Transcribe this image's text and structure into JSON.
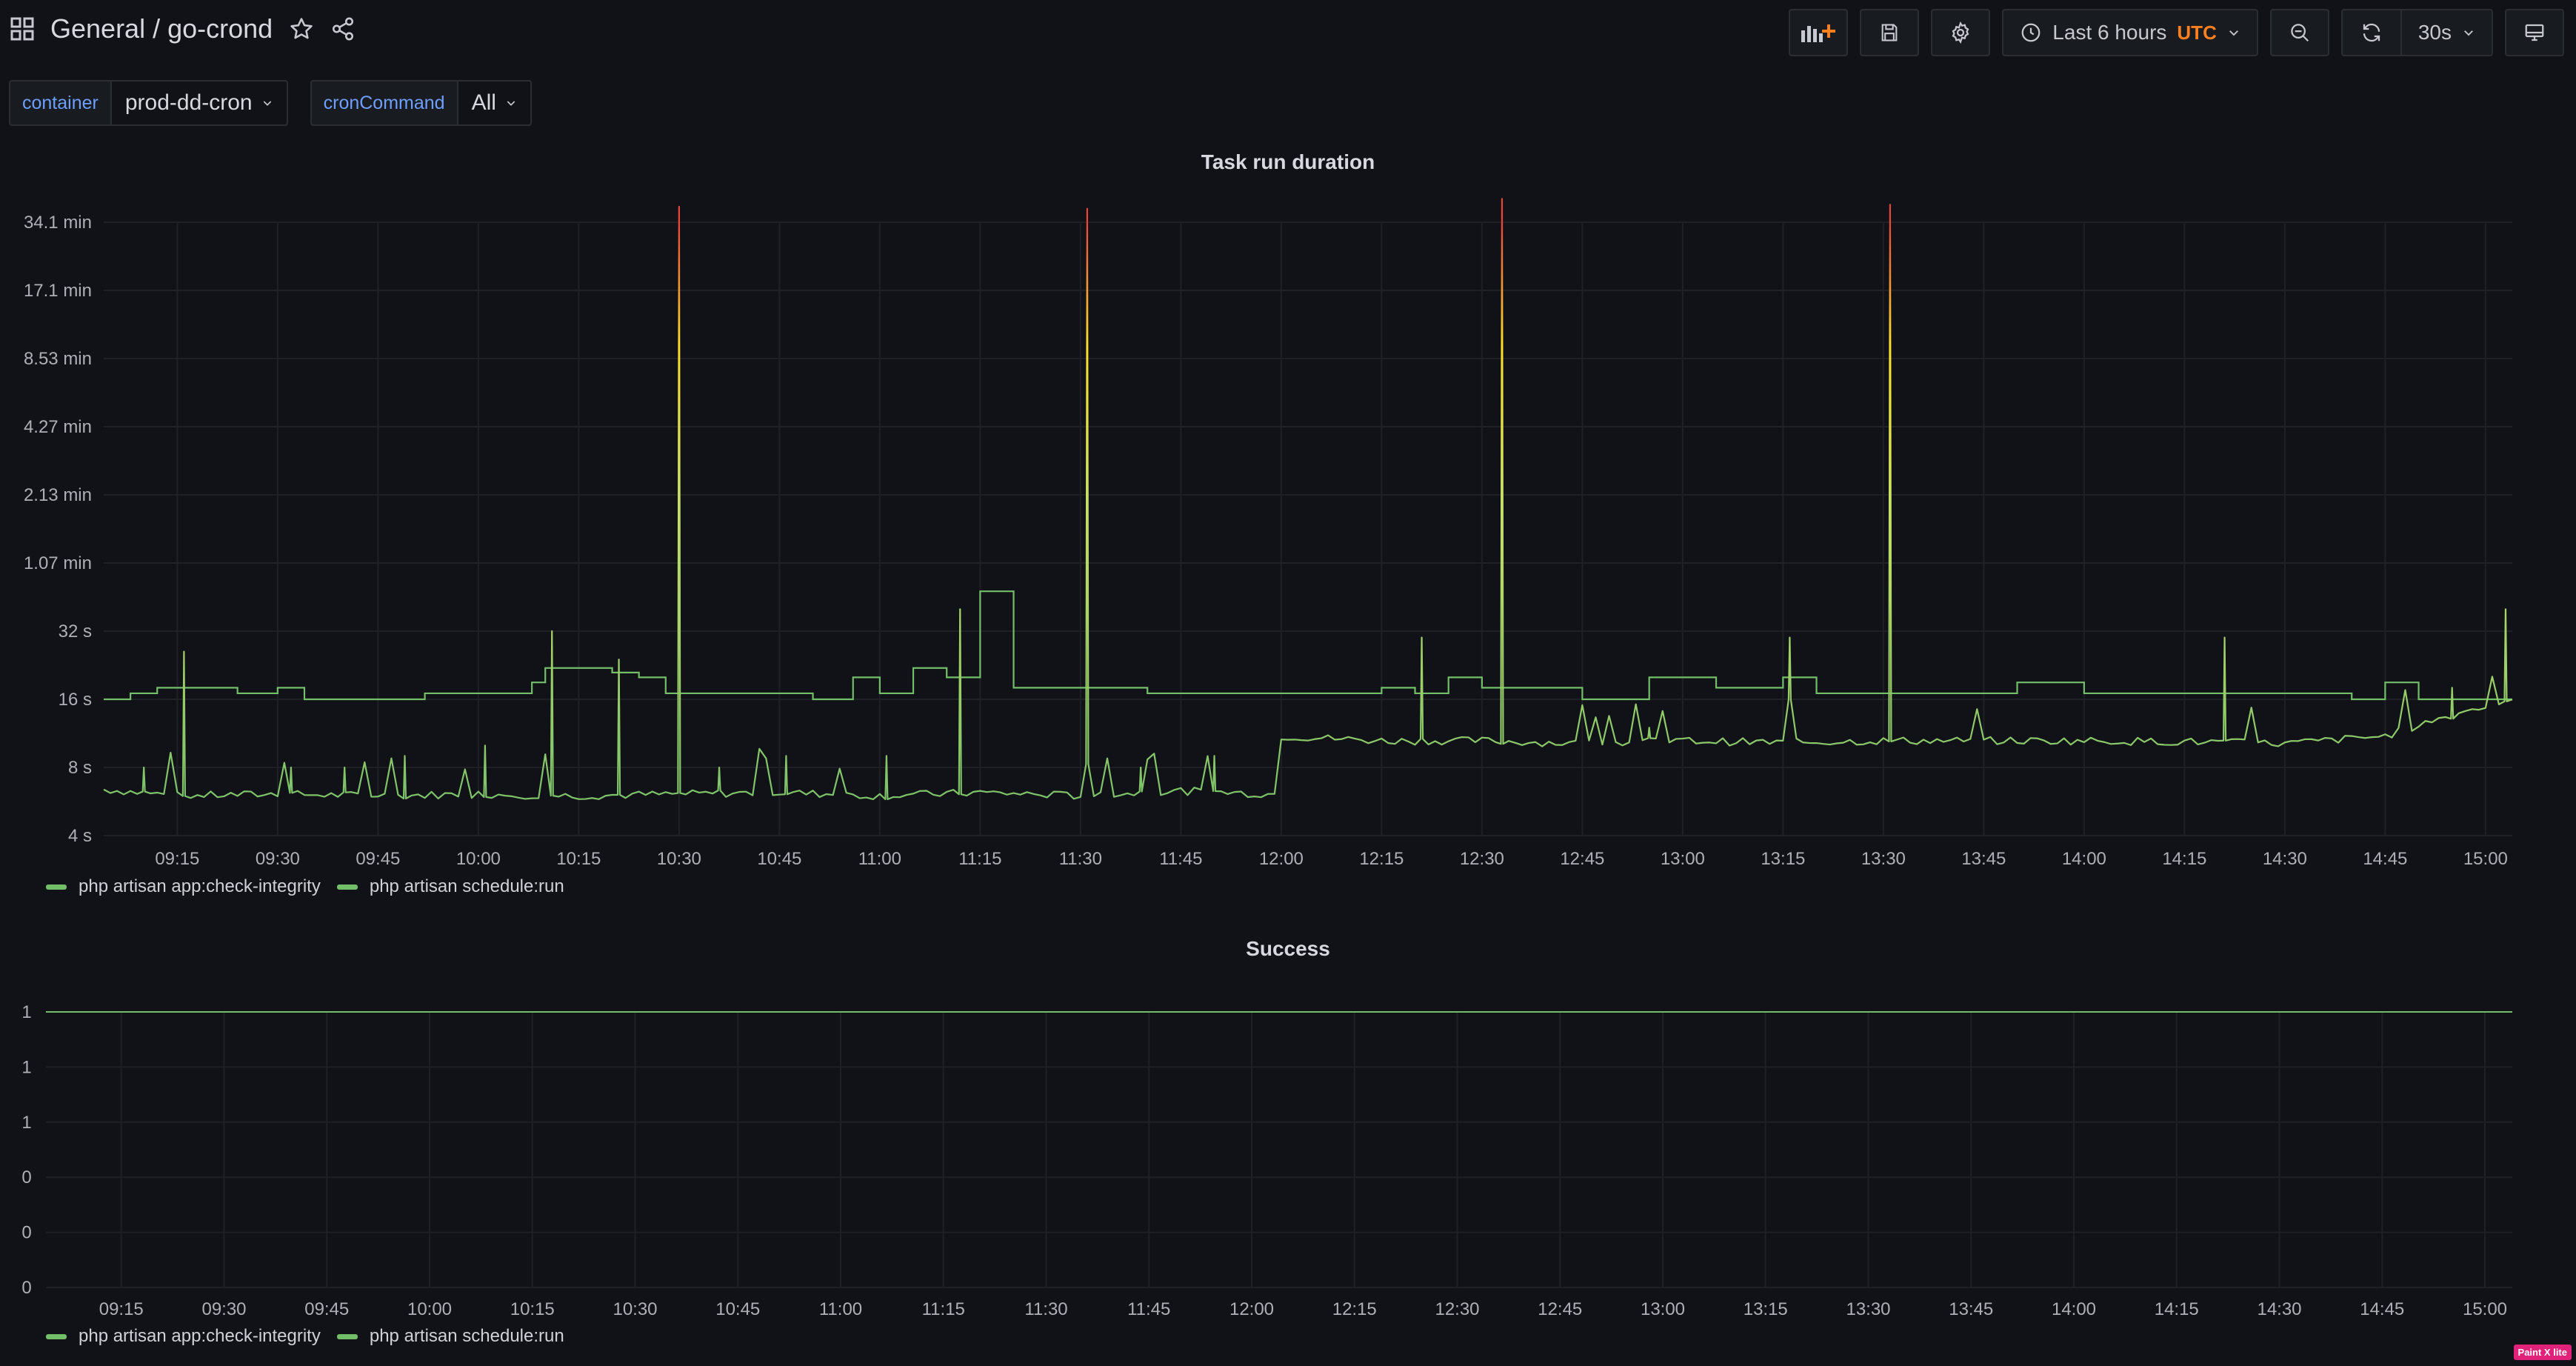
{
  "header": {
    "folder": "General",
    "dashboard": "/ go-crond",
    "time_range": "Last 6 hours",
    "timezone": "UTC",
    "refresh": "30s"
  },
  "variables": [
    {
      "label": "container",
      "value": "prod-dd-cron"
    },
    {
      "label": "cronCommand",
      "value": "All"
    }
  ],
  "panels": {
    "duration_title": "Task run duration",
    "success_title": "Success"
  },
  "legend": [
    "php artisan app:check-integrity",
    "php artisan schedule:run"
  ],
  "colors": {
    "series_green": "#73bf69",
    "series_yellow": "#c8e068",
    "spike_red": "#e8463a",
    "background": "#111217"
  },
  "watermark": "Paint X lite",
  "chart_data": [
    {
      "type": "line",
      "title": "Task run duration",
      "scale": "log2",
      "yticks": [
        "4 s",
        "8 s",
        "16 s",
        "32 s",
        "1.07 min",
        "2.13 min",
        "4.27 min",
        "8.53 min",
        "17.1 min",
        "34.1 min"
      ],
      "xticks": [
        "09:15",
        "09:30",
        "09:45",
        "10:00",
        "10:15",
        "10:30",
        "10:45",
        "11:00",
        "11:15",
        "11:30",
        "11:45",
        "12:00",
        "12:15",
        "12:30",
        "12:45",
        "13:00",
        "13:15",
        "13:30",
        "13:45",
        "14:00",
        "14:15",
        "14:30",
        "14:45",
        "15:00"
      ],
      "x_range": [
        "09:04",
        "15:04"
      ],
      "series": [
        {
          "name": "php artisan app:check-integrity",
          "points": [
            [
              "09:04",
              16
            ],
            [
              "09:08",
              17
            ],
            [
              "09:12",
              18
            ],
            [
              "09:20",
              18
            ],
            [
              "09:24",
              17
            ],
            [
              "09:30",
              18
            ],
            [
              "09:34",
              16
            ],
            [
              "09:50",
              16
            ],
            [
              "09:52",
              17
            ],
            [
              "10:04",
              17
            ],
            [
              "10:08",
              19
            ],
            [
              "10:10",
              22
            ],
            [
              "10:16",
              22
            ],
            [
              "10:20",
              21
            ],
            [
              "10:24",
              20
            ],
            [
              "10:28",
              17
            ],
            [
              "10:50",
              16
            ],
            [
              "10:56",
              20
            ],
            [
              "11:00",
              17
            ],
            [
              "11:05",
              22
            ],
            [
              "11:10",
              20
            ],
            [
              "11:15",
              48
            ],
            [
              "11:20",
              18
            ],
            [
              "11:25",
              18
            ],
            [
              "11:40",
              17
            ],
            [
              "12:00",
              17
            ],
            [
              "12:15",
              18
            ],
            [
              "12:20",
              17
            ],
            [
              "12:25",
              20
            ],
            [
              "12:30",
              18
            ],
            [
              "12:45",
              16
            ],
            [
              "12:55",
              20
            ],
            [
              "13:05",
              18
            ],
            [
              "13:15",
              20
            ],
            [
              "13:20",
              17
            ],
            [
              "13:40",
              17
            ],
            [
              "13:50",
              19
            ],
            [
              "14:00",
              17
            ],
            [
              "14:20",
              17
            ],
            [
              "14:40",
              16
            ],
            [
              "14:45",
              19
            ],
            [
              "14:50",
              16
            ],
            [
              "14:58",
              16
            ],
            [
              "15:04",
              16
            ]
          ]
        },
        {
          "name": "php artisan schedule:run",
          "points": [
            [
              "09:04",
              6.4
            ],
            [
              "09:15",
              6.0
            ],
            [
              "09:30",
              6.1
            ],
            [
              "09:45",
              6.0
            ],
            [
              "10:00",
              6.1
            ],
            [
              "10:15",
              6.0
            ],
            [
              "10:30",
              6.1
            ],
            [
              "10:45",
              6.2
            ],
            [
              "11:00",
              6.0
            ],
            [
              "11:15",
              6.2
            ],
            [
              "11:30",
              6.0
            ],
            [
              "11:45",
              6.3
            ],
            [
              "11:59",
              6.1
            ],
            [
              "12:00",
              11
            ],
            [
              "12:15",
              10.5
            ],
            [
              "12:30",
              10.5
            ],
            [
              "12:45",
              10.2
            ],
            [
              "13:00",
              10.5
            ],
            [
              "13:15",
              10.3
            ],
            [
              "13:30",
              10.5
            ],
            [
              "13:45",
              10.5
            ],
            [
              "14:00",
              10.5
            ],
            [
              "14:15",
              10.4
            ],
            [
              "14:30",
              10.2
            ],
            [
              "14:45",
              11
            ],
            [
              "15:04",
              16
            ]
          ],
          "spikes": [
            [
              "09:10",
              8
            ],
            [
              "09:16",
              26
            ],
            [
              "09:32",
              8
            ],
            [
              "09:40",
              8
            ],
            [
              "09:49",
              9
            ],
            [
              "10:01",
              10
            ],
            [
              "10:11",
              32
            ],
            [
              "10:21",
              24
            ],
            [
              "10:30",
              2400
            ],
            [
              "10:36",
              8
            ],
            [
              "10:46",
              9
            ],
            [
              "11:01",
              9
            ],
            [
              "11:12",
              40
            ],
            [
              "11:31",
              2350
            ],
            [
              "11:39",
              8
            ],
            [
              "11:50",
              9
            ],
            [
              "12:21",
              30
            ],
            [
              "12:33",
              2600
            ],
            [
              "12:55",
              12
            ],
            [
              "13:16",
              30
            ],
            [
              "13:31",
              2450
            ],
            [
              "14:21",
              30
            ],
            [
              "14:55",
              18
            ],
            [
              "15:03",
              40
            ]
          ]
        }
      ]
    },
    {
      "type": "line",
      "title": "Success",
      "yticks": [
        "1",
        "1",
        "1",
        "0",
        "0",
        "0"
      ],
      "xticks": [
        "09:15",
        "09:30",
        "09:45",
        "10:00",
        "10:15",
        "10:30",
        "10:45",
        "11:00",
        "11:15",
        "11:30",
        "11:45",
        "12:00",
        "12:15",
        "12:30",
        "12:45",
        "13:00",
        "13:15",
        "13:30",
        "13:45",
        "14:00",
        "14:15",
        "14:30",
        "14:45",
        "15:00"
      ],
      "series": [
        {
          "name": "php artisan app:check-integrity",
          "values": [
            1,
            1
          ]
        },
        {
          "name": "php artisan schedule:run",
          "values": [
            1,
            1
          ]
        }
      ]
    }
  ]
}
